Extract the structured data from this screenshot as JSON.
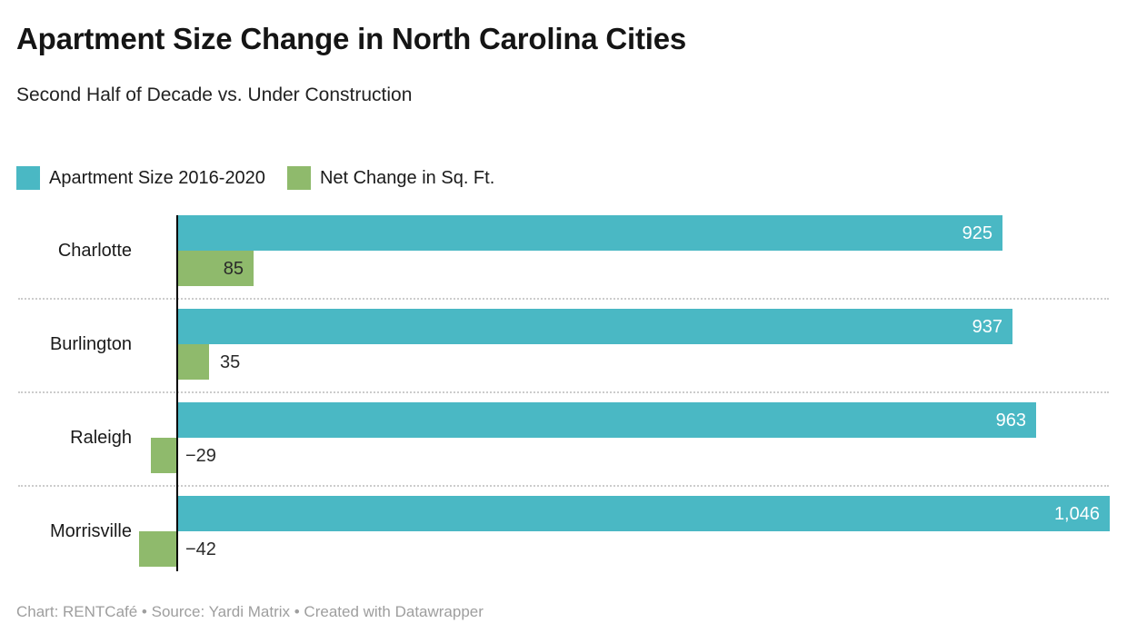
{
  "header": {
    "title": "Apartment Size Change in North Carolina Cities",
    "subtitle": "Second Half of Decade vs. Under Construction"
  },
  "legend": {
    "items": [
      {
        "label": "Apartment Size 2016-2020",
        "color": "#4ab8c4"
      },
      {
        "label": "Net Change in Sq. Ft.",
        "color": "#8fba6c"
      }
    ]
  },
  "chart_data": {
    "type": "bar",
    "orientation": "horizontal",
    "title": "Apartment Size Change in North Carolina Cities",
    "subtitle": "Second Half of Decade vs. Under Construction",
    "categories": [
      "Charlotte",
      "Burlington",
      "Raleigh",
      "Morrisville"
    ],
    "series": [
      {
        "name": "Apartment Size 2016-2020",
        "color": "#4ab8c4",
        "values": [
          925,
          937,
          963,
          1046
        ],
        "labels": [
          "925",
          "937",
          "963",
          "1,046"
        ],
        "label_color": "#ffffff"
      },
      {
        "name": "Net Change in Sq. Ft.",
        "color": "#8fba6c",
        "values": [
          85,
          35,
          -29,
          -42
        ],
        "labels": [
          "85",
          "35",
          "−29",
          "−42"
        ],
        "label_color": "#2a2a2a"
      }
    ],
    "xlim": [
      -60,
      1070
    ],
    "grid": false,
    "legend_position": "top-left",
    "baseline_color": "#000000",
    "separator_color": "#cccccc"
  },
  "footer": {
    "text": "Chart: RENTCafé • Source: Yardi Matrix • Created with Datawrapper"
  }
}
